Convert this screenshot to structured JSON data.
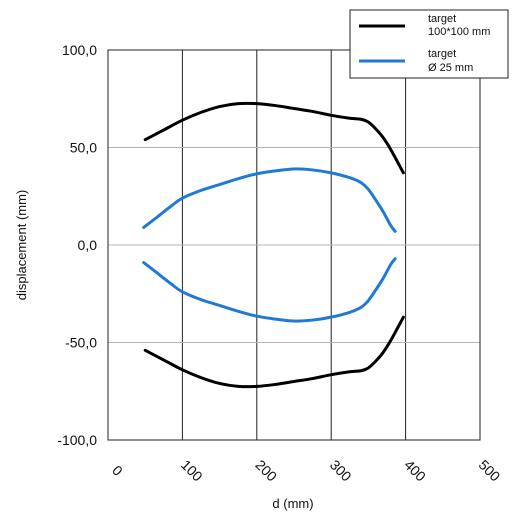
{
  "chart_data": {
    "type": "line",
    "title": "",
    "xlabel": "d (mm)",
    "ylabel": "displacement (mm)",
    "xlim": [
      0,
      500
    ],
    "ylim": [
      -100,
      100
    ],
    "x_ticks": [
      "0",
      "100",
      "200",
      "300",
      "400",
      "500"
    ],
    "y_ticks": [
      "100,0",
      "50,0",
      "0,0",
      "-50,0",
      "-100,0"
    ],
    "grid": true,
    "legend_position": "top-right",
    "legend": [
      {
        "line1": "target",
        "line2": "100*100 mm",
        "color": "#000000"
      },
      {
        "line1": "target",
        "line2": "Ø 25 mm",
        "color": "#1f7ad6"
      }
    ],
    "series": [
      {
        "color": "#000000",
        "x": [
          50,
          75,
          100,
          125,
          150,
          175,
          200,
          225,
          250,
          275,
          300,
          325,
          340,
          350,
          360,
          370,
          380,
          390,
          397
        ],
        "y": [
          54,
          59,
          64,
          68,
          71,
          72.5,
          72.5,
          71.5,
          70,
          68.5,
          66.5,
          65,
          64.5,
          63,
          59.5,
          55,
          49,
          42,
          37
        ]
      },
      {
        "color": "#000000",
        "x": [
          50,
          75,
          100,
          125,
          150,
          175,
          200,
          225,
          250,
          275,
          300,
          325,
          340,
          350,
          360,
          370,
          380,
          390,
          397
        ],
        "y": [
          -54,
          -59,
          -64,
          -68,
          -71,
          -72.5,
          -72.5,
          -71.5,
          -70,
          -68.5,
          -66.5,
          -65,
          -64.5,
          -63,
          -59.5,
          -55,
          -49,
          -42,
          -37
        ]
      },
      {
        "color": "#1f7ad6",
        "x": [
          48,
          65,
          85,
          100,
          125,
          150,
          175,
          200,
          225,
          250,
          275,
          300,
          325,
          340,
          350,
          360,
          370,
          380,
          386
        ],
        "y": [
          9,
          14,
          20,
          24,
          28,
          31,
          34,
          36.5,
          38,
          39,
          38.5,
          37,
          34.5,
          32,
          28.5,
          23,
          17,
          10,
          7
        ]
      },
      {
        "color": "#1f7ad6",
        "x": [
          48,
          65,
          85,
          100,
          125,
          150,
          175,
          200,
          225,
          250,
          275,
          300,
          325,
          340,
          350,
          360,
          370,
          380,
          386
        ],
        "y": [
          -9,
          -14,
          -20,
          -24,
          -28,
          -31,
          -34,
          -36.5,
          -38,
          -39,
          -38.5,
          -37,
          -34.5,
          -32,
          -28.5,
          -23,
          -17,
          -10,
          -7
        ]
      }
    ]
  }
}
